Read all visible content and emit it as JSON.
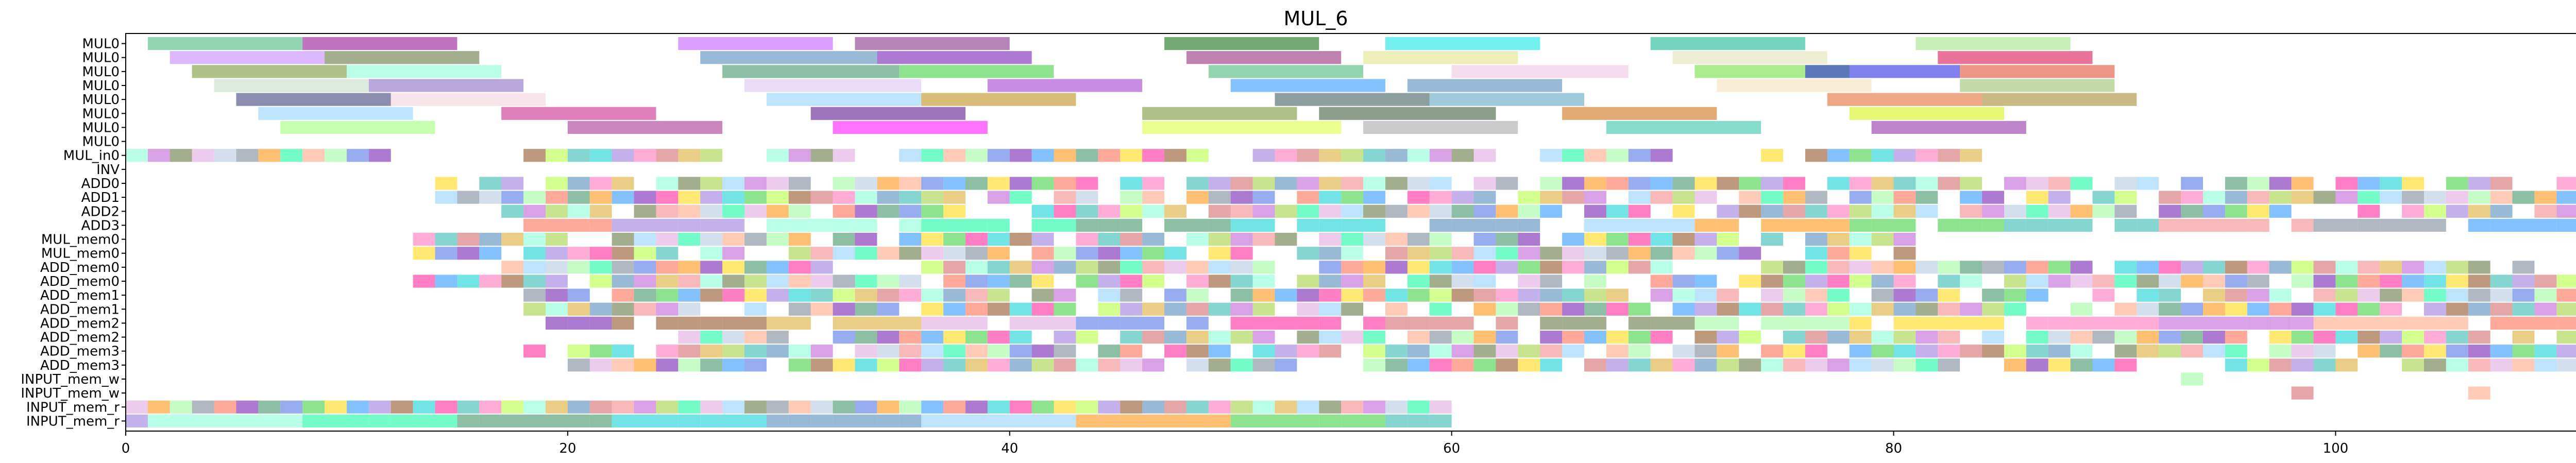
{
  "chart_data": {
    "type": "gantt",
    "title": "MUL_6",
    "xlim": [
      0,
      113
    ],
    "x_ticks": [
      0,
      20,
      40,
      60,
      80,
      100
    ],
    "grid": false,
    "rows": [
      "MUL0",
      "MUL0",
      "MUL0",
      "MUL0",
      "MUL0",
      "MUL0",
      "MUL0",
      "MUL0",
      "MUL_in0",
      "INV",
      "ADD0",
      "ADD1",
      "ADD2",
      "ADD3",
      "MUL_mem0",
      "MUL_mem0",
      "ADD_mem0",
      "ADD_mem0",
      "ADD_mem1",
      "ADD_mem1",
      "ADD_mem2",
      "ADD_mem2",
      "ADD_mem3",
      "ADD_mem3",
      "INPUT_mem_w",
      "INPUT_mem_w",
      "INPUT_mem_r",
      "INPUT_mem_r"
    ],
    "palette": [
      "#2e8b57",
      "#6a0dad",
      "#ff6347",
      "#1e90ff",
      "#ffd700",
      "#32cd32",
      "#ff1493",
      "#00ced1",
      "#8b4513",
      "#9370db",
      "#adff2f",
      "#ff69b4",
      "#20b2aa",
      "#cd5c5c",
      "#4682b4",
      "#daa520",
      "#7fffd4",
      "#9acd32",
      "#ba55d3",
      "#f08080",
      "#556b2f",
      "#87cefa",
      "#dda0dd",
      "#00fa9a",
      "#b0c4de",
      "#ffa07a",
      "#708090",
      "#98fb98",
      "#ff8c00",
      "#4169e1"
    ],
    "bars": [
      {
        "row": 0,
        "start": 1,
        "end": 8,
        "color": "#3cb371"
      },
      {
        "row": 0,
        "start": 8,
        "end": 15,
        "color": "#8b008b"
      },
      {
        "row": 0,
        "start": 25,
        "end": 32,
        "color": "#b84dff"
      },
      {
        "row": 0,
        "start": 33,
        "end": 40,
        "color": "#7a1f7a"
      },
      {
        "row": 0,
        "start": 47,
        "end": 54,
        "color": "#006400"
      },
      {
        "row": 0,
        "start": 57,
        "end": 64,
        "color": "#00e5e5"
      },
      {
        "row": 0,
        "start": 69,
        "end": 76,
        "color": "#00b386"
      },
      {
        "row": 0,
        "start": 81,
        "end": 88,
        "color": "#98e07a"
      },
      {
        "row": 1,
        "start": 2,
        "end": 9,
        "color": "#c080ff"
      },
      {
        "row": 1,
        "start": 9,
        "end": 16,
        "color": "#556b2f"
      },
      {
        "row": 1,
        "start": 26,
        "end": 34,
        "color": "#4682b4"
      },
      {
        "row": 1,
        "start": 34,
        "end": 41,
        "color": "#6a0dad"
      },
      {
        "row": 1,
        "start": 48,
        "end": 55,
        "color": "#8b1a6b"
      },
      {
        "row": 1,
        "start": 56,
        "end": 63,
        "color": "#e0e080"
      },
      {
        "row": 1,
        "start": 70,
        "end": 77,
        "color": "#e0e0b0"
      },
      {
        "row": 1,
        "start": 82,
        "end": 89,
        "color": "#d8004a"
      },
      {
        "row": 2,
        "start": 3,
        "end": 10,
        "color": "#6b8e23"
      },
      {
        "row": 2,
        "start": 10,
        "end": 17,
        "color": "#7fffd4"
      },
      {
        "row": 2,
        "start": 27,
        "end": 35,
        "color": "#2e8b57"
      },
      {
        "row": 2,
        "start": 35,
        "end": 42,
        "color": "#32cd32"
      },
      {
        "row": 2,
        "start": 49,
        "end": 56,
        "color": "#3cb371"
      },
      {
        "row": 2,
        "start": 60,
        "end": 68,
        "color": "#f0c0e0"
      },
      {
        "row": 2,
        "start": 71,
        "end": 78,
        "color": "#66dd33"
      },
      {
        "row": 2,
        "start": 76,
        "end": 83,
        "color": "#1a1ae0"
      },
      {
        "row": 2,
        "start": 83,
        "end": 90,
        "color": "#e04020"
      },
      {
        "row": 3,
        "start": 4,
        "end": 11,
        "color": "#c0d8c0"
      },
      {
        "row": 3,
        "start": 11,
        "end": 18,
        "color": "#8060c0"
      },
      {
        "row": 3,
        "start": 28,
        "end": 36,
        "color": "#d8c0f0"
      },
      {
        "row": 3,
        "start": 39,
        "end": 46,
        "color": "#9932cc"
      },
      {
        "row": 3,
        "start": 50,
        "end": 57,
        "color": "#1e90ff"
      },
      {
        "row": 3,
        "start": 58,
        "end": 65,
        "color": "#4682b4"
      },
      {
        "row": 3,
        "start": 72,
        "end": 79,
        "color": "#f5deb3"
      },
      {
        "row": 3,
        "start": 83,
        "end": 90,
        "color": "#8fbc5f"
      },
      {
        "row": 4,
        "start": 5,
        "end": 12,
        "color": "#2f2f6f"
      },
      {
        "row": 4,
        "start": 12,
        "end": 19,
        "color": "#f0d0d8"
      },
      {
        "row": 4,
        "start": 29,
        "end": 36,
        "color": "#87cefa"
      },
      {
        "row": 4,
        "start": 36,
        "end": 43,
        "color": "#b8860b"
      },
      {
        "row": 4,
        "start": 52,
        "end": 59,
        "color": "#2f4f4f"
      },
      {
        "row": 4,
        "start": 59,
        "end": 66,
        "color": "#4f9fbf"
      },
      {
        "row": 4,
        "start": 77,
        "end": 84,
        "color": "#e06020"
      },
      {
        "row": 4,
        "start": 84,
        "end": 91,
        "color": "#a08020"
      },
      {
        "row": 5,
        "start": 6,
        "end": 13,
        "color": "#87cefa"
      },
      {
        "row": 5,
        "start": 17,
        "end": 24,
        "color": "#c71585"
      },
      {
        "row": 5,
        "start": 31,
        "end": 38,
        "color": "#4b0082"
      },
      {
        "row": 5,
        "start": 46,
        "end": 53,
        "color": "#6b8e23"
      },
      {
        "row": 5,
        "start": 54,
        "end": 62,
        "color": "#2f4f2f"
      },
      {
        "row": 5,
        "start": 65,
        "end": 72,
        "color": "#cc6600"
      },
      {
        "row": 5,
        "start": 78,
        "end": 85,
        "color": "#d0f000"
      },
      {
        "row": 6,
        "start": 7,
        "end": 14,
        "color": "#98ff70"
      },
      {
        "row": 6,
        "start": 20,
        "end": 27,
        "color": "#a0208a"
      },
      {
        "row": 6,
        "start": 32,
        "end": 39,
        "color": "#ff00ff"
      },
      {
        "row": 6,
        "start": 46,
        "end": 55,
        "color": "#d8ff30"
      },
      {
        "row": 6,
        "start": 56,
        "end": 63,
        "color": "#a0a0a0"
      },
      {
        "row": 6,
        "start": 67,
        "end": 74,
        "color": "#20c0a0"
      },
      {
        "row": 6,
        "start": 79,
        "end": 86,
        "color": "#8b20a0"
      }
    ],
    "cell_rows": {
      "8": {
        "ranges": [
          [
            0,
            12
          ],
          [
            18,
            27
          ],
          [
            29,
            33
          ],
          [
            35,
            49
          ],
          [
            51,
            62
          ],
          [
            64,
            70
          ],
          [
            74,
            75
          ],
          [
            76,
            84
          ]
        ]
      },
      "10": {
        "ranges": [
          [
            14,
            113
          ]
        ]
      },
      "11": {
        "ranges": [
          [
            14,
            113
          ]
        ]
      },
      "12": {
        "ranges": [
          [
            17,
            113
          ]
        ]
      },
      "13": {
        "ranges": [
          [
            18,
            113
          ]
        ]
      },
      "14": {
        "ranges": [
          [
            13,
            81
          ]
        ]
      },
      "15": {
        "ranges": [
          [
            13,
            81
          ]
        ]
      },
      "16": {
        "ranges": [
          [
            16,
            113
          ]
        ]
      },
      "17": {
        "ranges": [
          [
            13,
            113
          ]
        ]
      },
      "18": {
        "ranges": [
          [
            18,
            113
          ]
        ]
      },
      "19": {
        "ranges": [
          [
            18,
            113
          ]
        ]
      },
      "20": {
        "ranges": [
          [
            19,
            113
          ]
        ]
      },
      "21": {
        "ranges": [
          [
            25,
            113
          ]
        ]
      },
      "22": {
        "ranges": [
          [
            18,
            113
          ]
        ]
      },
      "23": {
        "ranges": [
          [
            20,
            113
          ]
        ]
      },
      "24": {
        "cells": [
          93
        ]
      },
      "25": {
        "cells": [
          98,
          106,
          111,
          112
        ]
      },
      "26": {
        "ranges": [
          [
            0,
            60
          ],
          [
            111,
            113
          ]
        ]
      },
      "27": {
        "ranges": [
          [
            0,
            60
          ]
        ]
      }
    }
  }
}
